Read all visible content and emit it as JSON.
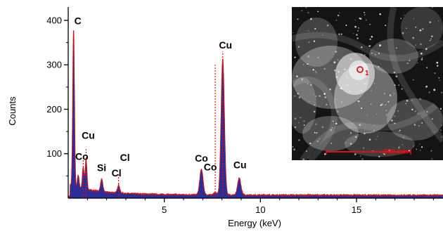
{
  "chart_data": {
    "type": "area",
    "xlabel": "Energy (keV)",
    "ylabel": "Counts",
    "xlim": [
      0,
      19.5
    ],
    "ylim": [
      0,
      430
    ],
    "x_ticks": [
      5,
      10,
      15
    ],
    "y_ticks": [
      100,
      200,
      300,
      400
    ],
    "grid": false,
    "series": [
      {
        "values": [
          {
            "x": 0.28,
            "y": 380
          },
          {
            "x": 0.52,
            "y": 52
          },
          {
            "x": 0.78,
            "y": 70
          },
          {
            "x": 0.93,
            "y": 88
          },
          {
            "x": 1.74,
            "y": 42
          },
          {
            "x": 2.62,
            "y": 30
          },
          {
            "x": 6.93,
            "y": 65
          },
          {
            "x": 7.65,
            "y": 12
          },
          {
            "x": 8.04,
            "y": 313
          },
          {
            "x": 8.9,
            "y": 45
          }
        ]
      }
    ],
    "peak_labels": [
      {
        "text": "C",
        "x": 0.28,
        "y": 380
      },
      {
        "text": "Cu",
        "x": 0.93,
        "y": 88
      },
      {
        "text": "Co",
        "x": 0.78,
        "y": 70
      },
      {
        "text": "Si",
        "x": 1.74,
        "y": 42
      },
      {
        "text": "Cl",
        "x": 2.62,
        "y": 30
      },
      {
        "text": "Cl",
        "x": 2.62,
        "y": 30
      },
      {
        "text": "Co",
        "x": 6.93,
        "y": 65
      },
      {
        "text": "Cu",
        "x": 8.04,
        "y": 313
      },
      {
        "text": "Co",
        "x": 7.65,
        "y": 12
      },
      {
        "text": "Cu",
        "x": 8.9,
        "y": 45
      }
    ],
    "marker_lines": [
      0.78,
      0.93,
      2.62,
      7.65,
      8.04
    ],
    "inset": {
      "point_label": "1",
      "scale_label": "200 nm"
    },
    "colors": {
      "fill": "#2b2d9a",
      "stroke": "#c81818",
      "marker": "#e01010"
    }
  }
}
